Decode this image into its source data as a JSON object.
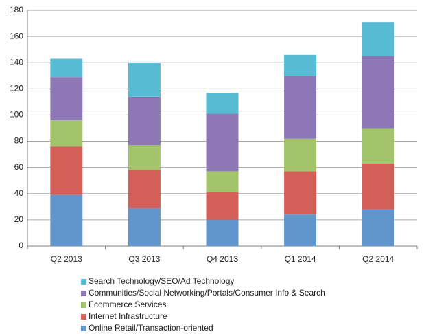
{
  "chart_data": {
    "type": "stacked_bar",
    "categories": [
      "Q2 2013",
      "Q3 2013",
      "Q4 2013",
      "Q1 2014",
      "Q2 2014"
    ],
    "series": [
      {
        "name": "Online Retail/Transaction-oriented",
        "color": "#6096cc",
        "values": [
          39,
          29,
          20,
          24,
          28
        ]
      },
      {
        "name": "Internet Infrastructure",
        "color": "#d25f58",
        "values": [
          37,
          29,
          21,
          33,
          35
        ]
      },
      {
        "name": "Ecommerce Services",
        "color": "#a3c46a",
        "values": [
          20,
          19,
          16,
          25,
          27
        ]
      },
      {
        "name": "Communities/Social Networking/Portals/Consumer Info & Search",
        "color": "#8e77b5",
        "values": [
          33,
          37,
          44,
          48,
          55
        ]
      },
      {
        "name": "Search Technology/SEO/Ad Technology",
        "color": "#57bbd3",
        "values": [
          14,
          26,
          16,
          16,
          26
        ]
      }
    ],
    "ylim": [
      0,
      180
    ],
    "yticks": [
      0,
      20,
      40,
      60,
      80,
      100,
      120,
      140,
      160,
      180
    ],
    "grid": true,
    "legend": "bottom"
  }
}
